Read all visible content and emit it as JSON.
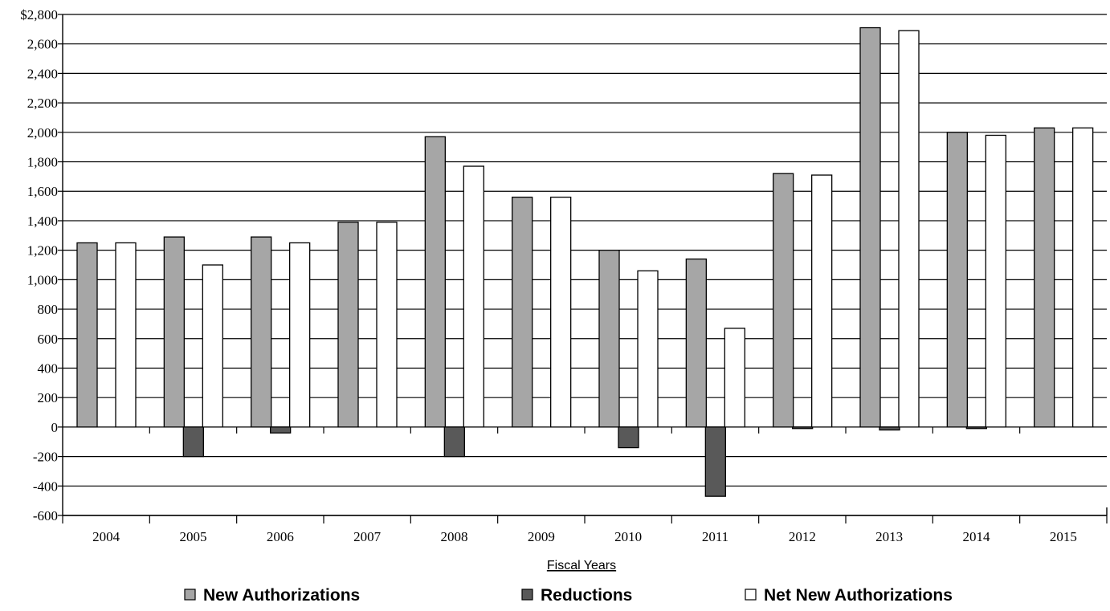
{
  "chart_data": {
    "type": "bar",
    "categories": [
      "2004",
      "2005",
      "2006",
      "2007",
      "2008",
      "2009",
      "2010",
      "2011",
      "2012",
      "2013",
      "2014",
      "2015"
    ],
    "series": [
      {
        "name": "New Authorizations",
        "color": "#a6a6a6",
        "values": [
          1250,
          1290,
          1290,
          1390,
          1970,
          1560,
          1200,
          1140,
          1720,
          2710,
          2000,
          2030
        ]
      },
      {
        "name": "Reductions",
        "color": "#595959",
        "values": [
          0,
          -200,
          -40,
          0,
          -200,
          0,
          -140,
          -470,
          -10,
          -20,
          -10,
          0
        ]
      },
      {
        "name": "Net New Authorizations",
        "color": "#ffffff",
        "values": [
          1250,
          1100,
          1250,
          1390,
          1770,
          1560,
          1060,
          670,
          1710,
          2690,
          1980,
          2030
        ]
      }
    ],
    "y_tick_labels": [
      "$2,800",
      "2,600",
      "2,400",
      "2,200",
      "2,000",
      "1,800",
      "1,600",
      "1,400",
      "1,200",
      "1,000",
      "800",
      "600",
      "400",
      "200",
      "0",
      "-200",
      "-400",
      "-600"
    ],
    "y_tick_values": [
      2800,
      2600,
      2400,
      2200,
      2000,
      1800,
      1600,
      1400,
      1200,
      1000,
      800,
      600,
      400,
      200,
      0,
      -200,
      -400,
      -600
    ],
    "ylim": [
      -600,
      2800
    ],
    "xlabel": "Fiscal Years",
    "ylabel": "",
    "grid": true,
    "legend_position": "bottom"
  }
}
